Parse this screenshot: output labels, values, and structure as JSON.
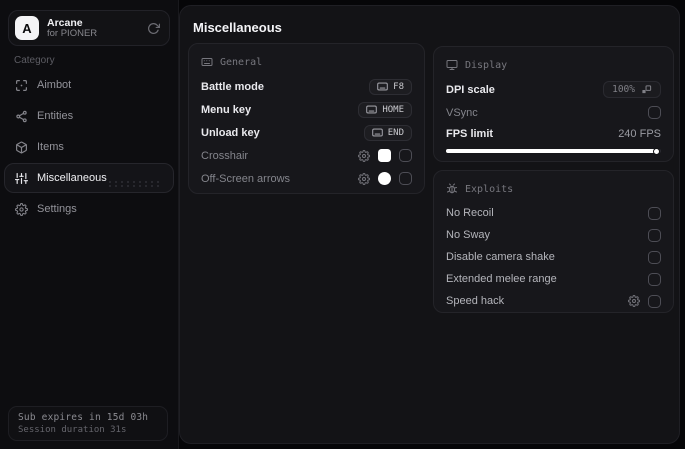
{
  "colors": {
    "swatch": "#ffffff",
    "slider_fill": "#ffffff",
    "panel_bg": "#131316",
    "card_bg": "#17171b"
  },
  "brand": {
    "logo_letter": "A",
    "title": "Arcane",
    "subtitle": "for PIONER"
  },
  "sidebar": {
    "category_label": "Category",
    "items": [
      {
        "label": "Aimbot"
      },
      {
        "label": "Entities"
      },
      {
        "label": "Items"
      },
      {
        "label": "Miscellaneous",
        "active": true
      },
      {
        "label": "Settings"
      }
    ],
    "footer": {
      "line1": "Sub expires in 15d 03h",
      "line2": "Session duration 31s"
    }
  },
  "main": {
    "title": "Miscellaneous",
    "general": {
      "header": "General",
      "keybinds": [
        {
          "label": "Battle mode",
          "key": "F8"
        },
        {
          "label": "Menu key",
          "key": "HOME"
        },
        {
          "label": "Unload key",
          "key": "END"
        }
      ],
      "toggles": [
        {
          "label": "Crosshair",
          "color": "#ffffff",
          "checked": false
        },
        {
          "label": "Off-Screen arrows",
          "color": "#ffffff",
          "checked": false
        }
      ]
    },
    "display": {
      "header": "Display",
      "dpi_label": "DPI scale",
      "dpi_value": "100%",
      "vsync_label": "VSync",
      "vsync_checked": false,
      "fps_label": "FPS limit",
      "fps_value": "240 FPS",
      "fps_slider_percent": 99
    },
    "exploits": {
      "header": "Exploits",
      "rows": [
        {
          "label": "No Recoil",
          "checked": false
        },
        {
          "label": "No Sway",
          "checked": false
        },
        {
          "label": "Disable camera shake",
          "checked": false
        },
        {
          "label": "Extended melee range",
          "checked": false
        },
        {
          "label": "Speed hack",
          "checked": false,
          "has_settings": true
        }
      ]
    }
  }
}
